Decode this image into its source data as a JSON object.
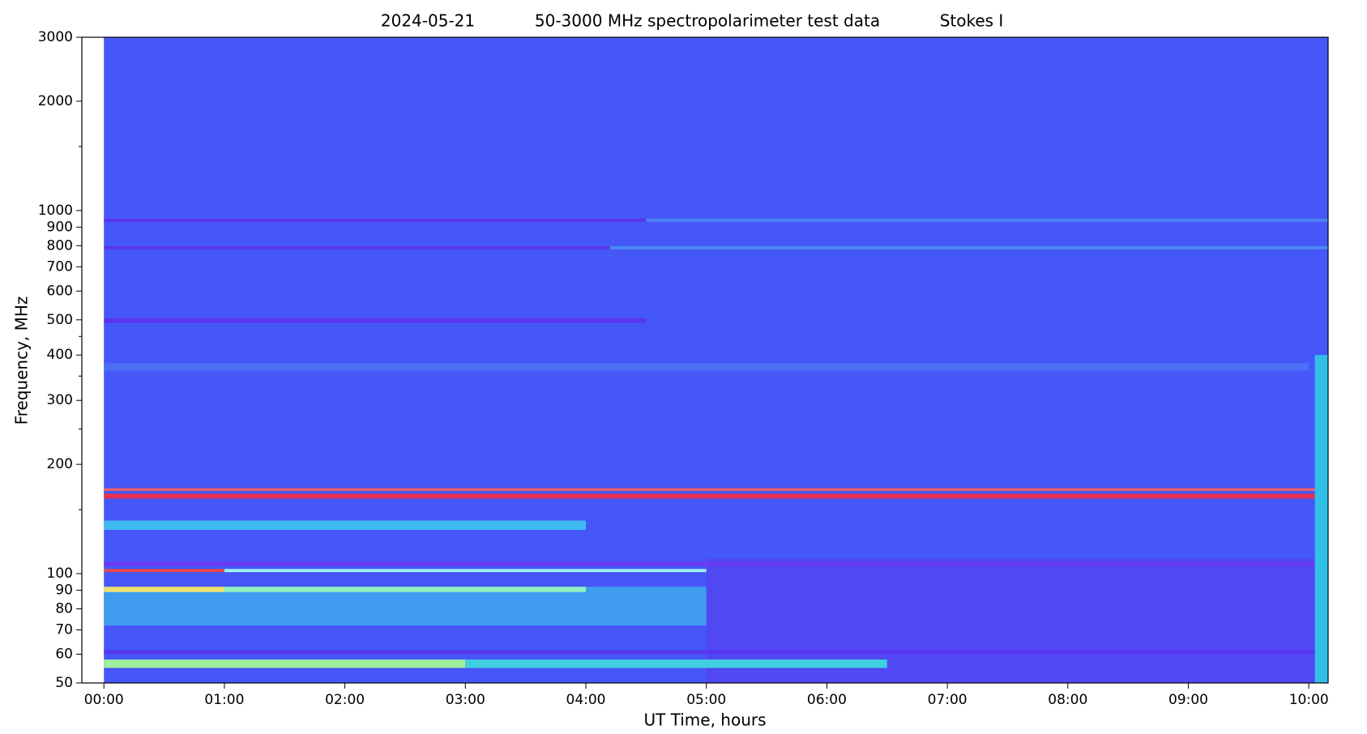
{
  "chart_data": {
    "type": "spectrogram",
    "title_parts": [
      "2024-05-21",
      "50-3000 MHz spectropolarimeter test data",
      "Stokes I"
    ],
    "x_label": "UT Time, hours",
    "y_label": "Frequency, MHz",
    "xlim": [
      -0.183,
      10.16
    ],
    "ylim": [
      50,
      3000
    ],
    "y_scale": "log",
    "xticks": [
      {
        "value": 0,
        "label": "00:00"
      },
      {
        "value": 1,
        "label": "01:00"
      },
      {
        "value": 2,
        "label": "02:00"
      },
      {
        "value": 3,
        "label": "03:00"
      },
      {
        "value": 4,
        "label": "04:00"
      },
      {
        "value": 5,
        "label": "05:00"
      },
      {
        "value": 6,
        "label": "06:00"
      },
      {
        "value": 7,
        "label": "07:00"
      },
      {
        "value": 8,
        "label": "08:00"
      },
      {
        "value": 9,
        "label": "09:00"
      },
      {
        "value": 10,
        "label": "10:00"
      }
    ],
    "yticks": [
      50,
      60,
      70,
      80,
      90,
      100,
      200,
      300,
      400,
      500,
      600,
      700,
      800,
      900,
      1000,
      2000,
      3000
    ],
    "yminorticks": [
      150,
      250,
      350,
      450,
      1500
    ],
    "bands": [
      {
        "x": [
          0,
          10.16
        ],
        "y": [
          50,
          3000
        ],
        "color": "#4657f8"
      },
      {
        "x": [
          5,
          10.16
        ],
        "y": [
          50,
          110
        ],
        "color": "#5048f2"
      },
      {
        "x": [
          0,
          5
        ],
        "y": [
          72,
          92
        ],
        "color": "#3f9cf0"
      },
      {
        "x": [
          0,
          1
        ],
        "y": [
          89,
          92
        ],
        "color": "#f0e070"
      },
      {
        "x": [
          1,
          4
        ],
        "y": [
          89,
          92
        ],
        "color": "#90f0c0"
      },
      {
        "x": [
          0,
          3
        ],
        "y": [
          55,
          58
        ],
        "color": "#a0f0a0"
      },
      {
        "x": [
          3,
          6.5
        ],
        "y": [
          55,
          58
        ],
        "color": "#40d0e0"
      },
      {
        "x": [
          0,
          10.16
        ],
        "y": [
          60,
          61.5
        ],
        "color": "#5a35f0"
      },
      {
        "x": [
          0,
          1
        ],
        "y": [
          101,
          103
        ],
        "color": "#e84848"
      },
      {
        "x": [
          1,
          5
        ],
        "y": [
          101,
          103
        ],
        "color": "#a0f0f0"
      },
      {
        "x": [
          0,
          10.16
        ],
        "y": [
          105,
          108
        ],
        "color": "#6a3aee"
      },
      {
        "x": [
          0,
          4
        ],
        "y": [
          132,
          140
        ],
        "color": "#40b8f0"
      },
      {
        "x": [
          0,
          10.16
        ],
        "y": [
          161,
          166
        ],
        "color": "#e83050"
      },
      {
        "x": [
          0,
          10.16
        ],
        "y": [
          169,
          172
        ],
        "color": "#e86070"
      },
      {
        "x": [
          0,
          10
        ],
        "y": [
          362,
          380
        ],
        "color": "#4a70f5"
      },
      {
        "x": [
          0,
          4.5
        ],
        "y": [
          490,
          505
        ],
        "color": "#5a35f0"
      },
      {
        "x": [
          0,
          4.2
        ],
        "y": [
          782,
          798
        ],
        "color": "#5a35f0"
      },
      {
        "x": [
          4.2,
          10.16
        ],
        "y": [
          782,
          798
        ],
        "color": "#4a8cf0"
      },
      {
        "x": [
          0,
          4.5
        ],
        "y": [
          930,
          950
        ],
        "color": "#5a35f0"
      },
      {
        "x": [
          4.5,
          10.16
        ],
        "y": [
          930,
          950
        ],
        "color": "#4a80f0"
      },
      {
        "x": [
          10.05,
          10.16
        ],
        "y": [
          50,
          400
        ],
        "color": "#30c0e8"
      }
    ]
  }
}
